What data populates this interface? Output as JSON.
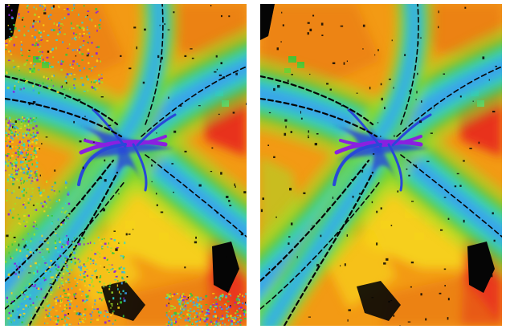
{
  "figure": {
    "panels": [
      {
        "id": "left",
        "variant": "noisy"
      },
      {
        "id": "right",
        "variant": "clean"
      }
    ],
    "colors": {
      "background": "#ffffff",
      "base": "#f39a14",
      "orange_dark": "#e8730e",
      "yellow": "#f6d21a",
      "red": "#e8321c",
      "green": "#34c83c",
      "lime": "#9fe02a",
      "cyan": "#2fd8d0",
      "light_blue": "#3aa0f0",
      "blue": "#2848d8",
      "violet": "#8a20e0",
      "black": "#050505"
    }
  }
}
